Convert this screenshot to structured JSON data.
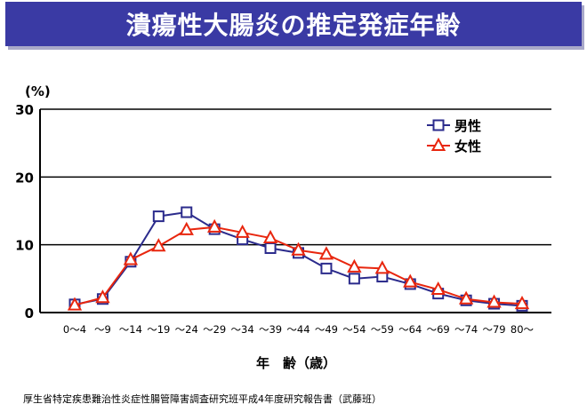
{
  "header": {
    "title": "潰瘍性大腸炎の推定発症年齢"
  },
  "source_note": "厚生省特定疾患難治性炎症性腸管障害調査研究班平成4年度研究報告書（武藤班）",
  "chart_data": {
    "type": "line",
    "ylabel": "(%)",
    "xlabel": "年　齢（歳）",
    "ylim": [
      0,
      30
    ],
    "yticks": [
      0,
      10,
      20,
      30
    ],
    "grid": true,
    "legend_position": "top-right",
    "categories": [
      "0～4",
      "～9",
      "～14",
      "～19",
      "～24",
      "～29",
      "～34",
      "～39",
      "～44",
      "～49",
      "～54",
      "～59",
      "～64",
      "～69",
      "～74",
      "～79",
      "80～"
    ],
    "series": [
      {
        "name": "男性",
        "color": "#2b2b8c",
        "marker": "square",
        "values": [
          1.2,
          2.0,
          7.5,
          14.2,
          14.8,
          12.3,
          10.8,
          9.5,
          8.8,
          6.5,
          5.0,
          5.3,
          4.2,
          2.8,
          1.8,
          1.3,
          1.0
        ]
      },
      {
        "name": "女性",
        "color": "#e8260e",
        "marker": "triangle",
        "values": [
          1.1,
          2.2,
          7.8,
          9.8,
          12.2,
          12.6,
          11.8,
          11.0,
          9.2,
          8.6,
          6.7,
          6.5,
          4.5,
          3.4,
          2.0,
          1.5,
          1.3
        ]
      }
    ]
  }
}
